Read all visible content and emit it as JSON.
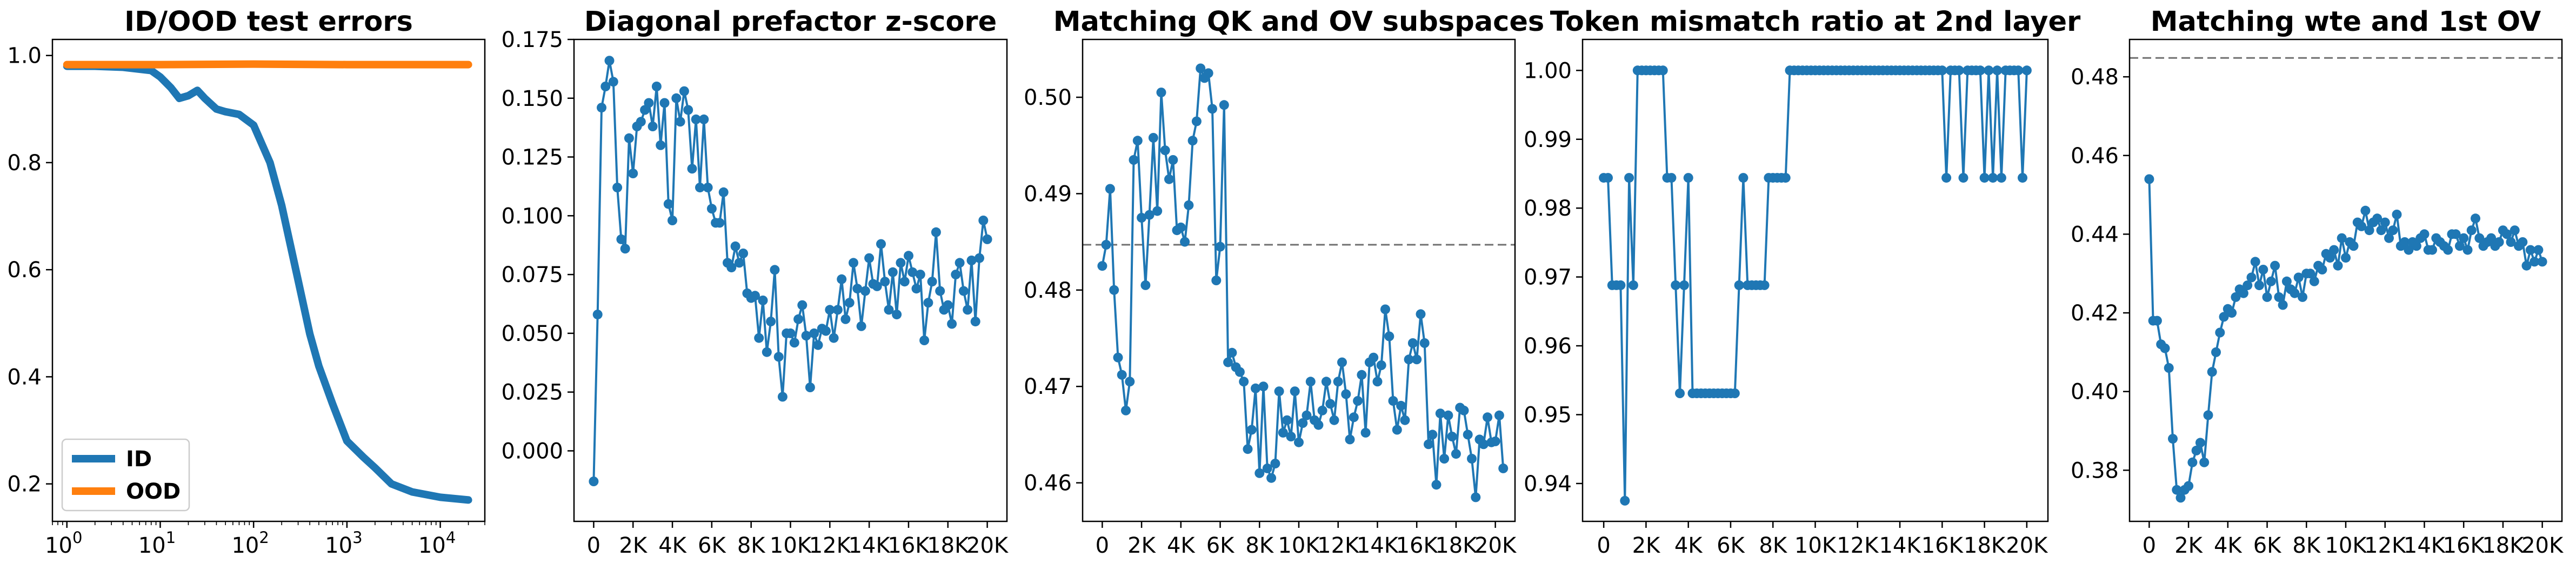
{
  "chart_data": [
    {
      "type": "line",
      "title": "ID/OOD test errors",
      "xscale": "log",
      "xlim": [
        0.7,
        30000
      ],
      "ylim": [
        0.13,
        1.03
      ],
      "xticks": [
        1,
        10,
        100,
        1000,
        10000
      ],
      "xtick_labels": [
        [
          "10",
          "0"
        ],
        [
          "10",
          "1"
        ],
        [
          "10",
          "2"
        ],
        [
          "10",
          "3"
        ],
        [
          "10",
          "4"
        ]
      ],
      "yticks": [
        0.2,
        0.4,
        0.6,
        0.8,
        1.0
      ],
      "ytick_labels": [
        "0.2",
        "0.4",
        "0.6",
        "0.8",
        "1.0"
      ],
      "legend": {
        "position": "lower-left",
        "entries": [
          "ID",
          "OOD"
        ]
      },
      "series": [
        {
          "name": "ID",
          "color": "#1f77b4",
          "x": [
            1,
            2,
            4,
            8,
            10,
            13,
            16,
            20,
            25,
            30,
            40,
            50,
            70,
            100,
            150,
            200,
            300,
            400,
            500,
            700,
            1000,
            1500,
            2000,
            3000,
            5000,
            10000,
            20000
          ],
          "y": [
            0.98,
            0.98,
            0.978,
            0.972,
            0.96,
            0.94,
            0.92,
            0.925,
            0.935,
            0.92,
            0.9,
            0.895,
            0.89,
            0.87,
            0.8,
            0.72,
            0.58,
            0.48,
            0.42,
            0.35,
            0.28,
            0.25,
            0.23,
            0.2,
            0.185,
            0.175,
            0.17
          ]
        },
        {
          "name": "OOD",
          "color": "#ff7f0e",
          "x": [
            1,
            10,
            100,
            1000,
            10000,
            20000
          ],
          "y": [
            0.983,
            0.983,
            0.984,
            0.983,
            0.983,
            0.983
          ]
        }
      ]
    },
    {
      "type": "line",
      "title": "Diagonal prefactor z-score",
      "xlim": [
        -1000,
        21000
      ],
      "ylim": [
        -0.03,
        0.175
      ],
      "xticks": [
        0,
        2000,
        4000,
        6000,
        8000,
        10000,
        12000,
        14000,
        16000,
        18000,
        20000
      ],
      "xtick_labels": [
        "0",
        "2K",
        "4K",
        "6K",
        "8K",
        "10K",
        "12K",
        "14K",
        "16K",
        "18K",
        "20K"
      ],
      "yticks": [
        0.0,
        0.025,
        0.05,
        0.075,
        0.1,
        0.125,
        0.15,
        0.175
      ],
      "ytick_labels": [
        "0.000",
        "0.025",
        "0.050",
        "0.075",
        "0.100",
        "0.125",
        "0.150",
        "0.175"
      ],
      "series": [
        {
          "color": "#1f77b4",
          "x_start": 0,
          "x_step": 200,
          "values": [
            -0.013,
            0.058,
            0.146,
            0.155,
            0.166,
            0.157,
            0.112,
            0.09,
            0.086,
            0.133,
            0.118,
            0.138,
            0.14,
            0.145,
            0.148,
            0.138,
            0.155,
            0.13,
            0.148,
            0.105,
            0.098,
            0.15,
            0.14,
            0.153,
            0.145,
            0.12,
            0.141,
            0.112,
            0.141,
            0.112,
            0.103,
            0.097,
            0.097,
            0.11,
            0.08,
            0.078,
            0.087,
            0.08,
            0.084,
            0.067,
            0.065,
            0.066,
            0.048,
            0.064,
            0.042,
            0.055,
            0.077,
            0.04,
            0.023,
            0.05,
            0.05,
            0.046,
            0.056,
            0.062,
            0.049,
            0.027,
            0.05,
            0.045,
            0.052,
            0.051,
            0.06,
            0.048,
            0.06,
            0.073,
            0.056,
            0.063,
            0.08,
            0.069,
            0.053,
            0.068,
            0.082,
            0.071,
            0.07,
            0.088,
            0.072,
            0.06,
            0.076,
            0.058,
            0.08,
            0.072,
            0.083,
            0.076,
            0.069,
            0.075,
            0.047,
            0.063,
            0.072,
            0.093,
            0.068,
            0.06,
            0.062,
            0.054,
            0.075,
            0.08,
            0.068,
            0.06,
            0.081,
            0.055,
            0.082,
            0.098,
            0.09
          ]
        }
      ]
    },
    {
      "type": "line",
      "title": "Matching QK and OV subspaces",
      "xlim": [
        -1000,
        21000
      ],
      "ylim": [
        0.456,
        0.506
      ],
      "xticks": [
        0,
        2000,
        4000,
        6000,
        8000,
        10000,
        12000,
        14000,
        16000,
        18000,
        20000
      ],
      "xtick_labels": [
        "0",
        "2K",
        "4K",
        "6K",
        "8K",
        "10K",
        "12K",
        "14K",
        "16K",
        "18K",
        "20K"
      ],
      "yticks": [
        0.46,
        0.47,
        0.48,
        0.49,
        0.5
      ],
      "ytick_labels": [
        "0.46",
        "0.47",
        "0.48",
        "0.49",
        "0.50"
      ],
      "reference_line": 0.4847,
      "series": [
        {
          "color": "#1f77b4",
          "x_start": 0,
          "x_step": 200,
          "values": [
            0.4825,
            0.4847,
            0.4905,
            0.48,
            0.473,
            0.4712,
            0.4675,
            0.4705,
            0.4935,
            0.4955,
            0.4875,
            0.4805,
            0.4878,
            0.4958,
            0.4882,
            0.5005,
            0.4945,
            0.4915,
            0.4935,
            0.4862,
            0.4865,
            0.485,
            0.4888,
            0.4955,
            0.4975,
            0.503,
            0.502,
            0.5025,
            0.4988,
            0.481,
            0.4845,
            0.4992,
            0.4725,
            0.4735,
            0.472,
            0.4715,
            0.4705,
            0.4635,
            0.4655,
            0.4698,
            0.461,
            0.47,
            0.4615,
            0.4605,
            0.462,
            0.4695,
            0.4652,
            0.4665,
            0.4648,
            0.4695,
            0.4642,
            0.4662,
            0.467,
            0.4705,
            0.4665,
            0.466,
            0.4675,
            0.4705,
            0.4682,
            0.4665,
            0.4705,
            0.4725,
            0.4692,
            0.4645,
            0.4668,
            0.4685,
            0.4712,
            0.4652,
            0.4725,
            0.473,
            0.4705,
            0.4722,
            0.478,
            0.4752,
            0.4685,
            0.4655,
            0.468,
            0.4665,
            0.4728,
            0.4745,
            0.4728,
            0.4775,
            0.4745,
            0.464,
            0.465,
            0.4598,
            0.4672,
            0.4625,
            0.467,
            0.4648,
            0.463,
            0.4678,
            0.4675,
            0.465,
            0.4625,
            0.4585,
            0.4645,
            0.464,
            0.4668,
            0.4642,
            0.4643,
            0.467,
            0.4615
          ]
        }
      ]
    },
    {
      "type": "line",
      "title": "Token mismatch ratio at 2nd layer",
      "xlim": [
        -1000,
        21000
      ],
      "ylim": [
        0.9345,
        1.0045
      ],
      "xticks": [
        0,
        2000,
        4000,
        6000,
        8000,
        10000,
        12000,
        14000,
        16000,
        18000,
        20000
      ],
      "xtick_labels": [
        "0",
        "2K",
        "4K",
        "6K",
        "8K",
        "10K",
        "12K",
        "14K",
        "16K",
        "18K",
        "20K"
      ],
      "yticks": [
        0.94,
        0.95,
        0.96,
        0.97,
        0.98,
        0.99,
        1.0
      ],
      "ytick_labels": [
        "0.94",
        "0.95",
        "0.96",
        "0.97",
        "0.98",
        "0.99",
        "1.00"
      ],
      "series": [
        {
          "color": "#1f77b4",
          "x_start": 0,
          "x_step": 200,
          "values": [
            0.9844,
            0.9844,
            0.9688,
            0.9688,
            0.9688,
            0.9375,
            0.9844,
            0.9688,
            1.0,
            1.0,
            1.0,
            1.0,
            1.0,
            1.0,
            1.0,
            0.9844,
            0.9844,
            0.9688,
            0.9531,
            0.9688,
            0.9844,
            0.9531,
            0.9531,
            0.9531,
            0.9531,
            0.9531,
            0.9531,
            0.9531,
            0.9531,
            0.9531,
            0.9531,
            0.9531,
            0.9688,
            0.9844,
            0.9688,
            0.9688,
            0.9688,
            0.9688,
            0.9688,
            0.9844,
            0.9844,
            0.9844,
            0.9844,
            0.9844,
            1.0,
            1.0,
            1.0,
            1.0,
            1.0,
            1.0,
            1.0,
            1.0,
            1.0,
            1.0,
            1.0,
            1.0,
            1.0,
            1.0,
            1.0,
            1.0,
            1.0,
            1.0,
            1.0,
            1.0,
            1.0,
            1.0,
            1.0,
            1.0,
            1.0,
            1.0,
            1.0,
            1.0,
            1.0,
            1.0,
            1.0,
            1.0,
            1.0,
            1.0,
            1.0,
            1.0,
            1.0,
            0.9844,
            1.0,
            1.0,
            1.0,
            0.9844,
            1.0,
            1.0,
            1.0,
            1.0,
            0.9844,
            1.0,
            0.9844,
            1.0,
            0.9844,
            1.0,
            1.0,
            1.0,
            1.0,
            0.9844,
            1.0
          ]
        }
      ]
    },
    {
      "type": "line",
      "title": "Matching wte and 1st OV",
      "xlim": [
        -1000,
        21000
      ],
      "ylim": [
        0.367,
        0.4895
      ],
      "xticks": [
        0,
        2000,
        4000,
        6000,
        8000,
        10000,
        12000,
        14000,
        16000,
        18000,
        20000
      ],
      "xtick_labels": [
        "0",
        "2K",
        "4K",
        "6K",
        "8K",
        "10K",
        "12K",
        "14K",
        "16K",
        "18K",
        "20K"
      ],
      "yticks": [
        0.38,
        0.4,
        0.42,
        0.44,
        0.46,
        0.48
      ],
      "ytick_labels": [
        "0.38",
        "0.40",
        "0.42",
        "0.44",
        "0.46",
        "0.48"
      ],
      "reference_line": 0.4848,
      "series": [
        {
          "color": "#1f77b4",
          "x_start": 0,
          "x_step": 200,
          "values": [
            0.454,
            0.418,
            0.418,
            0.412,
            0.411,
            0.406,
            0.388,
            0.375,
            0.373,
            0.375,
            0.376,
            0.382,
            0.385,
            0.387,
            0.382,
            0.394,
            0.405,
            0.41,
            0.415,
            0.419,
            0.421,
            0.42,
            0.424,
            0.426,
            0.425,
            0.427,
            0.429,
            0.433,
            0.427,
            0.431,
            0.424,
            0.428,
            0.432,
            0.424,
            0.422,
            0.428,
            0.426,
            0.425,
            0.429,
            0.424,
            0.43,
            0.43,
            0.428,
            0.432,
            0.431,
            0.435,
            0.434,
            0.436,
            0.432,
            0.439,
            0.434,
            0.438,
            0.437,
            0.443,
            0.442,
            0.446,
            0.441,
            0.443,
            0.444,
            0.441,
            0.443,
            0.439,
            0.441,
            0.445,
            0.437,
            0.438,
            0.436,
            0.438,
            0.437,
            0.439,
            0.44,
            0.436,
            0.436,
            0.439,
            0.438,
            0.437,
            0.436,
            0.44,
            0.44,
            0.437,
            0.439,
            0.436,
            0.441,
            0.444,
            0.439,
            0.437,
            0.438,
            0.439,
            0.437,
            0.438,
            0.441,
            0.44,
            0.438,
            0.441,
            0.437,
            0.438,
            0.432,
            0.436,
            0.433,
            0.436,
            0.433
          ]
        }
      ]
    }
  ]
}
